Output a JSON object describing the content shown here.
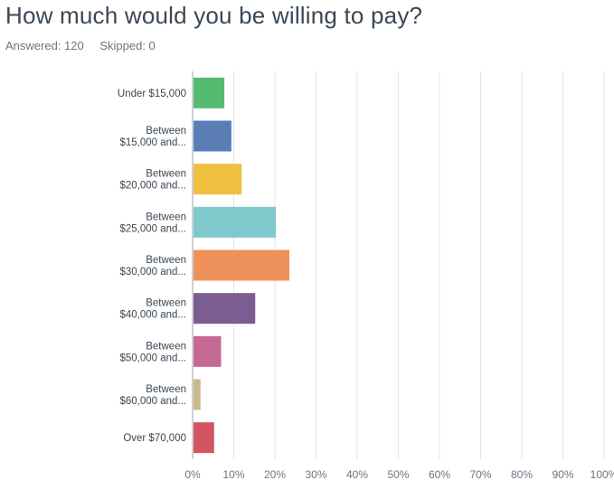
{
  "header": {
    "title": "How much would you be willing to pay?",
    "answered": "Answered: 120",
    "skipped": "Skipped: 0"
  },
  "chart_data": {
    "type": "bar",
    "orientation": "horizontal",
    "categories": [
      [
        "Under $15,000"
      ],
      [
        "Between",
        "$15,000 and..."
      ],
      [
        "Between",
        "$20,000 and..."
      ],
      [
        "Between",
        "$25,000 and..."
      ],
      [
        "Between",
        "$30,000 and..."
      ],
      [
        "Between",
        "$40,000 and..."
      ],
      [
        "Between",
        "$50,000 and..."
      ],
      [
        "Between",
        "$60,000 and..."
      ],
      [
        "Over  $70,000"
      ]
    ],
    "values": [
      7.5,
      9.2,
      11.7,
      20.0,
      23.3,
      15.0,
      6.7,
      1.7,
      5.0
    ],
    "colors": [
      "#55bb6f",
      "#5b7db5",
      "#efc03f",
      "#80c8cc",
      "#ef915a",
      "#7b5d91",
      "#c66894",
      "#c9b98a",
      "#d2555f"
    ],
    "xlim": [
      0,
      100
    ],
    "xticks": [
      "0%",
      "10%",
      "20%",
      "30%",
      "40%",
      "50%",
      "60%",
      "70%",
      "80%",
      "90%",
      "100%"
    ],
    "grid": true
  }
}
